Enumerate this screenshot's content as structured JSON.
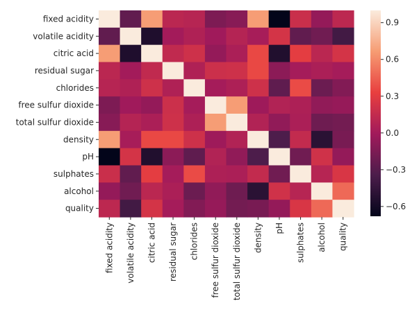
{
  "chart_data": {
    "type": "heatmap",
    "title": "",
    "xlabel": "",
    "ylabel": "",
    "row_labels": [
      "fixed acidity",
      "volatile acidity",
      "citric acid",
      "residual sugar",
      "chlorides",
      "free sulfur dioxide",
      "total sulfur dioxide",
      "density",
      "pH",
      "sulphates",
      "alcohol",
      "quality"
    ],
    "col_labels": [
      "fixed acidity",
      "volatile acidity",
      "citric acid",
      "residual sugar",
      "chlorides",
      "free sulfur dioxide",
      "total sulfur dioxide",
      "density",
      "pH",
      "sulphates",
      "alcohol",
      "quality"
    ],
    "values": [
      [
        1.0,
        -0.26,
        0.67,
        0.11,
        0.09,
        -0.15,
        -0.11,
        0.67,
        -0.68,
        0.18,
        -0.06,
        0.12
      ],
      [
        -0.26,
        1.0,
        -0.55,
        0.0,
        0.06,
        -0.01,
        0.08,
        0.02,
        0.23,
        -0.26,
        -0.2,
        -0.39
      ],
      [
        0.67,
        -0.55,
        1.0,
        0.14,
        0.2,
        -0.06,
        0.04,
        0.36,
        -0.54,
        0.31,
        0.11,
        0.23
      ],
      [
        0.11,
        0.0,
        0.14,
        1.0,
        0.06,
        0.19,
        0.2,
        0.36,
        -0.09,
        0.01,
        0.04,
        0.01
      ],
      [
        0.09,
        0.06,
        0.2,
        0.06,
        1.0,
        0.01,
        0.05,
        0.2,
        -0.27,
        0.37,
        -0.22,
        -0.13
      ],
      [
        -0.15,
        -0.01,
        -0.06,
        0.19,
        0.01,
        1.0,
        0.67,
        -0.02,
        0.07,
        0.05,
        -0.07,
        -0.05
      ],
      [
        -0.11,
        0.08,
        0.04,
        0.2,
        0.05,
        0.67,
        1.0,
        0.07,
        -0.07,
        0.04,
        -0.21,
        -0.19
      ],
      [
        0.67,
        0.02,
        0.36,
        0.36,
        0.2,
        -0.02,
        0.07,
        1.0,
        -0.34,
        0.15,
        -0.5,
        -0.17
      ],
      [
        -0.68,
        0.23,
        -0.54,
        -0.09,
        -0.27,
        0.07,
        -0.07,
        -0.34,
        1.0,
        -0.2,
        0.21,
        -0.06
      ],
      [
        0.18,
        -0.26,
        0.31,
        0.01,
        0.37,
        0.05,
        0.04,
        0.15,
        -0.2,
        1.0,
        0.09,
        0.25
      ],
      [
        -0.06,
        -0.2,
        0.11,
        0.04,
        -0.22,
        -0.07,
        -0.21,
        -0.5,
        0.21,
        0.09,
        1.0,
        0.48
      ],
      [
        0.12,
        -0.39,
        0.23,
        0.01,
        -0.13,
        -0.05,
        -0.19,
        -0.17,
        -0.06,
        0.25,
        0.48,
        1.0
      ]
    ],
    "vmin": -0.68,
    "vmax": 1.0,
    "colorbar_ticks": [
      0.9,
      0.6,
      0.3,
      0.0,
      -0.3,
      -0.6
    ],
    "colorbar_tick_labels": [
      "0.9",
      "0.6",
      "0.3",
      "0.0",
      "−0.3",
      "−0.6"
    ],
    "colormap": "rocket",
    "colormap_stops": [
      "#03051a",
      "#4c1d4b",
      "#a11a5b",
      "#e83f3f",
      "#f69c73",
      "#faebdd"
    ]
  }
}
